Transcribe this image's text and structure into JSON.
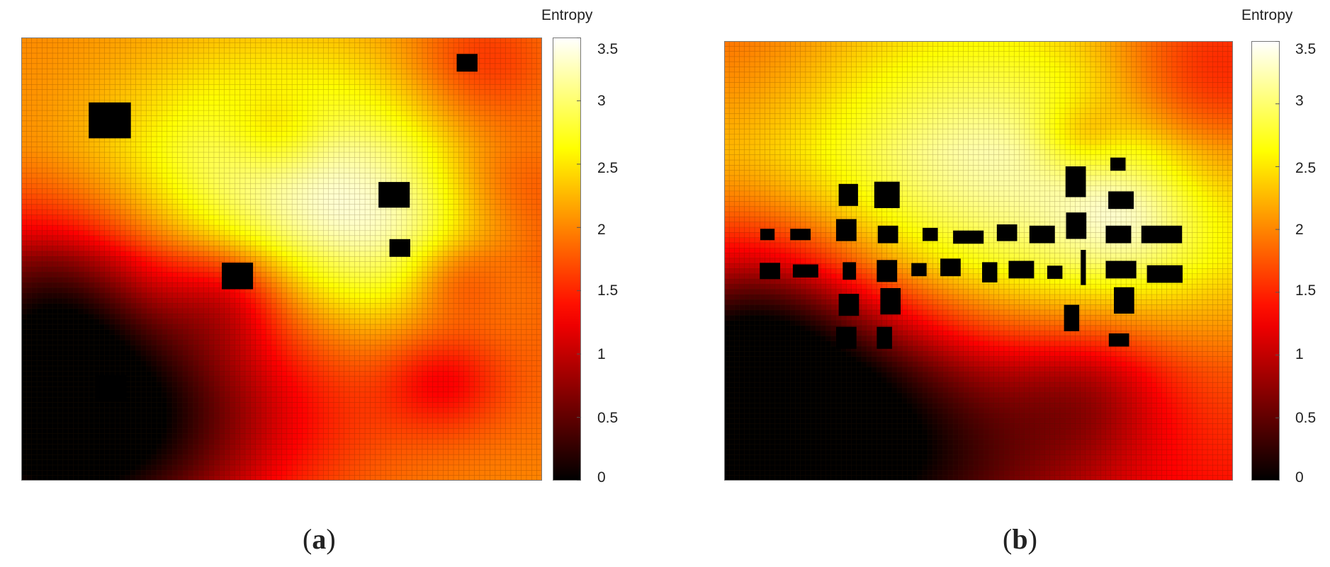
{
  "chart_data": [
    {
      "type": "heatmap",
      "panel_label": "a",
      "colorbar": {
        "title": "Entropy",
        "min": 0,
        "max": 3.5,
        "ticks": [
          "3.5",
          "3",
          "2.5",
          "2",
          "1.5",
          "1",
          "0.5",
          "0"
        ]
      },
      "colormap": "hot",
      "grid_resolution": [
        100,
        85
      ],
      "field": {
        "base": [
          [
            0.0,
            2.0
          ],
          [
            0.25,
            2.0
          ],
          [
            0.5,
            1.6
          ],
          [
            0.75,
            1.8
          ],
          [
            1.0,
            2.0
          ]
        ],
        "blobs": [
          {
            "x": 0.5,
            "y": 0.38,
            "r": 0.23,
            "v": 1.4
          },
          {
            "x": 0.75,
            "y": 0.48,
            "r": 0.15,
            "v": 0.8
          },
          {
            "x": 0.06,
            "y": 0.92,
            "r": 0.26,
            "v": -1.8
          },
          {
            "x": 0.22,
            "y": 0.8,
            "r": 0.2,
            "v": -0.7
          },
          {
            "x": 0.06,
            "y": 0.6,
            "r": 0.12,
            "v": -0.6
          },
          {
            "x": 0.4,
            "y": 0.58,
            "r": 0.08,
            "v": -0.6
          },
          {
            "x": 0.83,
            "y": 0.55,
            "r": 0.07,
            "v": -0.6
          },
          {
            "x": 0.81,
            "y": 0.77,
            "r": 0.08,
            "v": -0.6
          },
          {
            "x": 0.88,
            "y": 0.06,
            "r": 0.1,
            "v": -0.5
          },
          {
            "x": 0.49,
            "y": 0.22,
            "r": 0.07,
            "v": -0.5
          },
          {
            "x": 0.92,
            "y": 0.33,
            "r": 0.1,
            "v": -0.4
          },
          {
            "x": 0.55,
            "y": 0.72,
            "r": 0.2,
            "v": -0.3
          }
        ]
      },
      "obstacles": [
        {
          "x": 0.17,
          "y": 0.187,
          "w": 0.081,
          "h": 0.081
        },
        {
          "x": 0.856,
          "y": 0.057,
          "w": 0.04,
          "h": 0.04
        },
        {
          "x": 0.716,
          "y": 0.355,
          "w": 0.06,
          "h": 0.058
        },
        {
          "x": 0.727,
          "y": 0.475,
          "w": 0.04,
          "h": 0.04
        },
        {
          "x": 0.415,
          "y": 0.538,
          "w": 0.06,
          "h": 0.06
        },
        {
          "x": 0.172,
          "y": 0.792,
          "w": 0.06,
          "h": 0.06
        }
      ]
    },
    {
      "type": "heatmap",
      "panel_label": "b",
      "colorbar": {
        "title": "Entropy",
        "min": 0,
        "max": 3.5,
        "ticks": [
          "3.5",
          "3",
          "2.5",
          "2",
          "1.5",
          "1",
          "0.5",
          "0"
        ]
      },
      "colormap": "hot",
      "grid_resolution": [
        100,
        85
      ],
      "field": {
        "base": [
          [
            0.0,
            2.0
          ],
          [
            0.25,
            2.4
          ],
          [
            0.5,
            2.3
          ],
          [
            0.75,
            1.7
          ],
          [
            1.0,
            1.4
          ]
        ],
        "blobs": [
          {
            "x": 0.52,
            "y": 0.28,
            "r": 0.33,
            "v": 0.9
          },
          {
            "x": 0.05,
            "y": 0.12,
            "r": 0.2,
            "v": -0.3
          },
          {
            "x": 0.95,
            "y": 0.12,
            "r": 0.16,
            "v": -0.9
          },
          {
            "x": 0.07,
            "y": 0.88,
            "r": 0.28,
            "v": -1.6
          },
          {
            "x": 0.05,
            "y": 0.62,
            "r": 0.16,
            "v": -0.9
          },
          {
            "x": 0.3,
            "y": 0.82,
            "r": 0.2,
            "v": -0.6
          },
          {
            "x": 0.72,
            "y": 0.8,
            "r": 0.12,
            "v": -0.7
          },
          {
            "x": 0.52,
            "y": 0.92,
            "r": 0.18,
            "v": -0.4
          },
          {
            "x": 0.8,
            "y": 0.4,
            "r": 0.1,
            "v": 0.5
          },
          {
            "x": 0.7,
            "y": 0.22,
            "r": 0.06,
            "v": -0.5
          }
        ]
      },
      "obstacles": [
        {
          "x": 0.085,
          "y": 0.44,
          "w": 0.028,
          "h": 0.026
        },
        {
          "x": 0.15,
          "y": 0.44,
          "w": 0.04,
          "h": 0.026
        },
        {
          "x": 0.09,
          "y": 0.523,
          "w": 0.04,
          "h": 0.037
        },
        {
          "x": 0.16,
          "y": 0.523,
          "w": 0.05,
          "h": 0.03
        },
        {
          "x": 0.244,
          "y": 0.35,
          "w": 0.038,
          "h": 0.05
        },
        {
          "x": 0.32,
          "y": 0.35,
          "w": 0.05,
          "h": 0.06
        },
        {
          "x": 0.24,
          "y": 0.43,
          "w": 0.04,
          "h": 0.05
        },
        {
          "x": 0.322,
          "y": 0.44,
          "w": 0.04,
          "h": 0.04
        },
        {
          "x": 0.405,
          "y": 0.44,
          "w": 0.03,
          "h": 0.03
        },
        {
          "x": 0.48,
          "y": 0.446,
          "w": 0.06,
          "h": 0.03
        },
        {
          "x": 0.556,
          "y": 0.436,
          "w": 0.04,
          "h": 0.038
        },
        {
          "x": 0.625,
          "y": 0.44,
          "w": 0.05,
          "h": 0.04
        },
        {
          "x": 0.692,
          "y": 0.42,
          "w": 0.04,
          "h": 0.06
        },
        {
          "x": 0.775,
          "y": 0.44,
          "w": 0.05,
          "h": 0.04
        },
        {
          "x": 0.86,
          "y": 0.44,
          "w": 0.08,
          "h": 0.04
        },
        {
          "x": 0.246,
          "y": 0.523,
          "w": 0.026,
          "h": 0.04
        },
        {
          "x": 0.32,
          "y": 0.523,
          "w": 0.04,
          "h": 0.05
        },
        {
          "x": 0.383,
          "y": 0.52,
          "w": 0.03,
          "h": 0.03
        },
        {
          "x": 0.445,
          "y": 0.515,
          "w": 0.04,
          "h": 0.04
        },
        {
          "x": 0.522,
          "y": 0.526,
          "w": 0.03,
          "h": 0.046
        },
        {
          "x": 0.584,
          "y": 0.52,
          "w": 0.05,
          "h": 0.04
        },
        {
          "x": 0.65,
          "y": 0.526,
          "w": 0.03,
          "h": 0.03
        },
        {
          "x": 0.706,
          "y": 0.515,
          "w": 0.01,
          "h": 0.08
        },
        {
          "x": 0.78,
          "y": 0.52,
          "w": 0.06,
          "h": 0.04
        },
        {
          "x": 0.866,
          "y": 0.53,
          "w": 0.07,
          "h": 0.04
        },
        {
          "x": 0.691,
          "y": 0.32,
          "w": 0.04,
          "h": 0.07
        },
        {
          "x": 0.774,
          "y": 0.28,
          "w": 0.03,
          "h": 0.03
        },
        {
          "x": 0.78,
          "y": 0.362,
          "w": 0.05,
          "h": 0.04
        },
        {
          "x": 0.245,
          "y": 0.6,
          "w": 0.04,
          "h": 0.05
        },
        {
          "x": 0.327,
          "y": 0.592,
          "w": 0.04,
          "h": 0.06
        },
        {
          "x": 0.683,
          "y": 0.63,
          "w": 0.03,
          "h": 0.06
        },
        {
          "x": 0.786,
          "y": 0.59,
          "w": 0.04,
          "h": 0.06
        },
        {
          "x": 0.24,
          "y": 0.675,
          "w": 0.04,
          "h": 0.05
        },
        {
          "x": 0.315,
          "y": 0.675,
          "w": 0.03,
          "h": 0.05
        },
        {
          "x": 0.776,
          "y": 0.68,
          "w": 0.04,
          "h": 0.03
        }
      ]
    }
  ]
}
